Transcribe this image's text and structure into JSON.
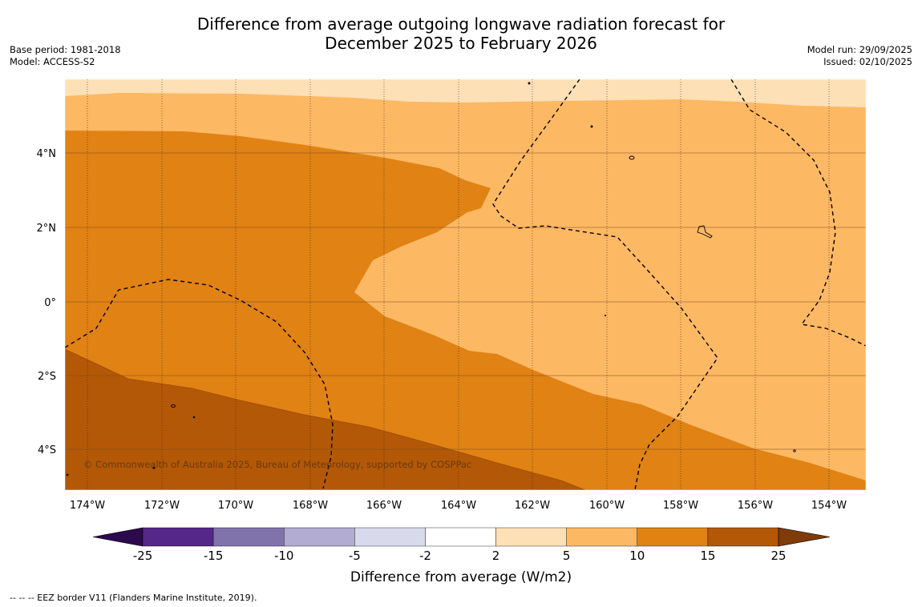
{
  "title_line1": "Difference from average outgoing longwave radiation forecast for",
  "title_line2": "December 2025 to February 2026",
  "base_period": "Base period: 1981-2018",
  "model": "Model: ACCESS-S2",
  "model_run": "Model run: 29/09/2025",
  "issued": "Issued: 02/10/2025",
  "lat_labels": [
    "4°N",
    "2°N",
    "0°",
    "2°S",
    "4°S"
  ],
  "lon_labels": [
    "174°W",
    "172°W",
    "170°W",
    "168°W",
    "166°W",
    "164°W",
    "162°W",
    "160°W",
    "158°W",
    "156°W",
    "154°W"
  ],
  "copyright": "© Commonwealth of Australia 2025, Bureau of Meteorology, supported by COSPPac",
  "colorbar": {
    "title": "Difference from average (W/m2)",
    "ticks": [
      "-25",
      "-15",
      "-10",
      "-5",
      "-2",
      "2",
      "5",
      "10",
      "15",
      "25"
    ],
    "colors": [
      "#2d0a4e",
      "#542788",
      "#8073ac",
      "#b2abd2",
      "#d8daeb",
      "#ffffff",
      "#fee0b6",
      "#fdb863",
      "#e08214",
      "#b35806",
      "#7f3b08"
    ]
  },
  "footer": "--  --  -- EEZ border V11 (Flanders Marine Institute, 2019)."
}
